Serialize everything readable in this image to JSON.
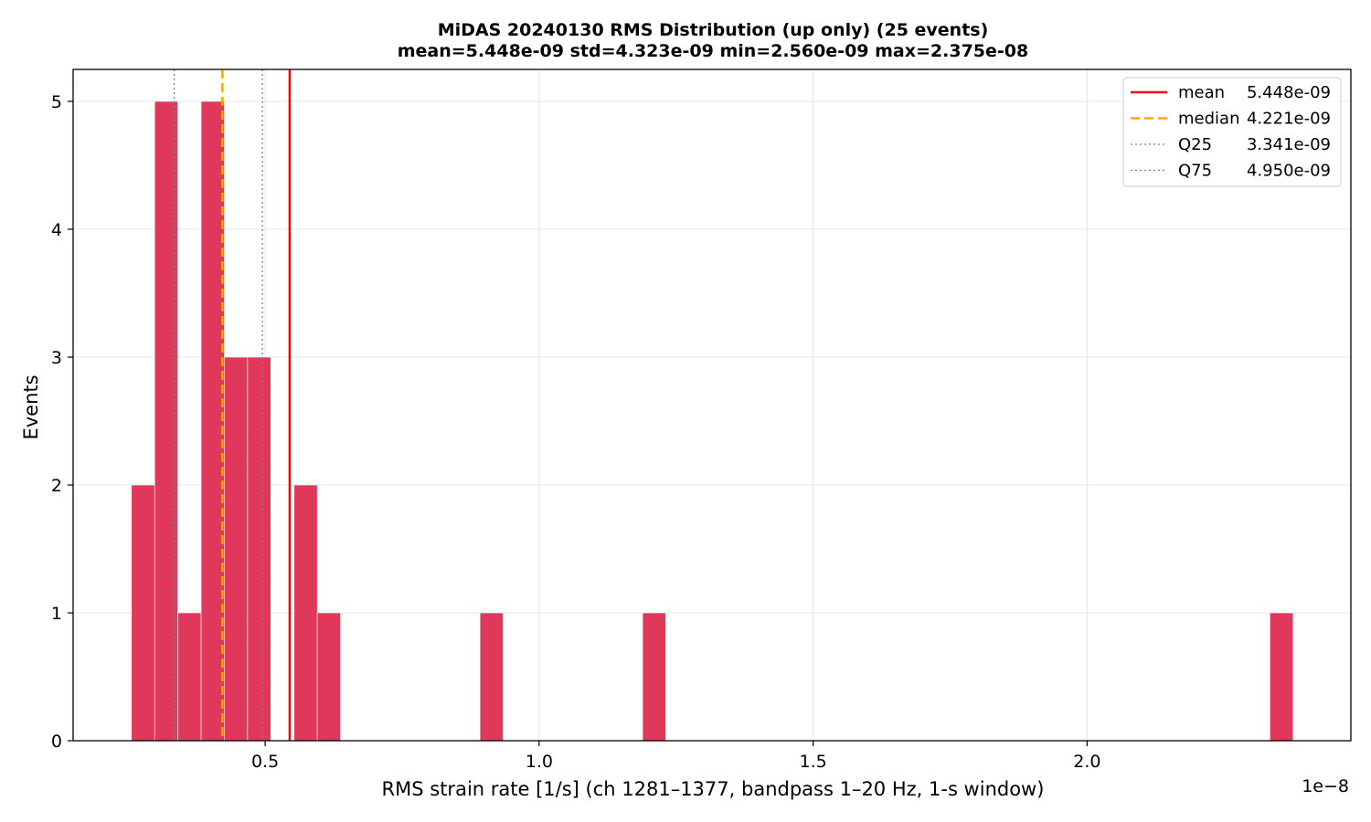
{
  "chart_data": {
    "type": "bar",
    "title": "MiDAS 20240130  RMS Distribution  (up only)  (25 events)",
    "subtitle": "mean=5.448e-09  std=4.323e-09  min=2.560e-09  max=2.375e-08",
    "xlabel": "RMS strain rate [1/s]  (ch 1281–1377, bandpass 1–20 Hz, 1-s window)",
    "ylabel": "Events",
    "x_offset_label": "1e−8",
    "xlim": [
      0.1496,
      2.4814
    ],
    "ylim": [
      0,
      5.25
    ],
    "x_ticks": [
      0.5,
      1.0,
      1.5,
      2.0
    ],
    "x_tick_labels": [
      "0.5",
      "1.0",
      "1.5",
      "2.0"
    ],
    "y_ticks": [
      0,
      1,
      2,
      3,
      4,
      5
    ],
    "y_tick_labels": [
      "0",
      "1",
      "2",
      "3",
      "4",
      "5"
    ],
    "grid": true,
    "bar_color": "#e0385a",
    "bin_edges_start": 0.256,
    "bin_width": 0.0424,
    "counts": [
      2,
      5,
      1,
      5,
      3,
      3,
      0,
      2,
      1,
      0,
      0,
      0,
      0,
      0,
      0,
      1,
      0,
      0,
      0,
      0,
      0,
      0,
      1,
      0,
      0,
      0,
      0,
      0,
      0,
      0,
      0,
      0,
      0,
      0,
      0,
      0,
      0,
      0,
      0,
      0,
      0,
      0,
      0,
      0,
      0,
      0,
      0,
      0,
      0,
      1
    ],
    "reference_lines": [
      {
        "label": "mean",
        "value_text": "5.448e-09",
        "x": 0.5448,
        "color": "#ff0000",
        "style": "solid"
      },
      {
        "label": "median",
        "value_text": "4.221e-09",
        "x": 0.4221,
        "color": "#ffa500",
        "style": "dashed"
      },
      {
        "label": "Q25",
        "value_text": "3.341e-09",
        "x": 0.3341,
        "color": "#808080",
        "style": "dotted"
      },
      {
        "label": "Q75",
        "value_text": "4.950e-09",
        "x": 0.495,
        "color": "#808080",
        "style": "dotted"
      }
    ],
    "legend_position": "top-right"
  }
}
